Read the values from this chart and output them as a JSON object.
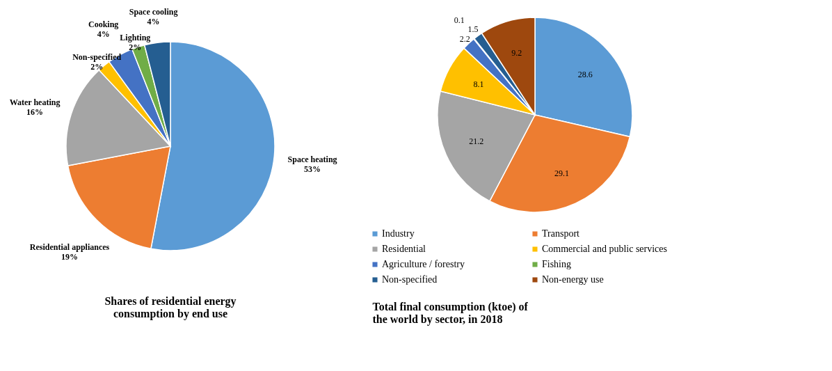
{
  "chart_data": [
    {
      "type": "pie",
      "title": "Shares of residential energy consumption by end use",
      "categories": [
        "Space heating",
        "Residential appliances",
        "Water heating",
        "Non-specified",
        "Cooking",
        "Lighting",
        "Space cooling"
      ],
      "values": [
        53,
        19,
        16,
        2,
        4,
        2,
        4
      ],
      "value_labels": [
        "53%",
        "19%",
        "16%",
        "2%",
        "4%",
        "2%",
        "4%"
      ],
      "colors": [
        "#5b9bd5",
        "#ed7d31",
        "#a5a5a5",
        "#ffc000",
        "#4472c4",
        "#70ad47",
        "#255e91"
      ],
      "legend": false
    },
    {
      "type": "pie",
      "title": "Total final consumption (ktoe) of the world by sector, in 2018",
      "categories": [
        "Industry",
        "Transport",
        "Residential",
        "Commercial and public services",
        "Agriculture / forestry",
        "Fishing",
        "Non-specified",
        "Non-energy use"
      ],
      "values": [
        28.6,
        29.1,
        21.2,
        8.1,
        2.2,
        0.1,
        1.5,
        9.2
      ],
      "colors": [
        "#5b9bd5",
        "#ed7d31",
        "#a5a5a5",
        "#ffc000",
        "#4472c4",
        "#70ad47",
        "#255e91",
        "#9e480e"
      ],
      "data_labels": true,
      "legend": "bottom"
    }
  ]
}
